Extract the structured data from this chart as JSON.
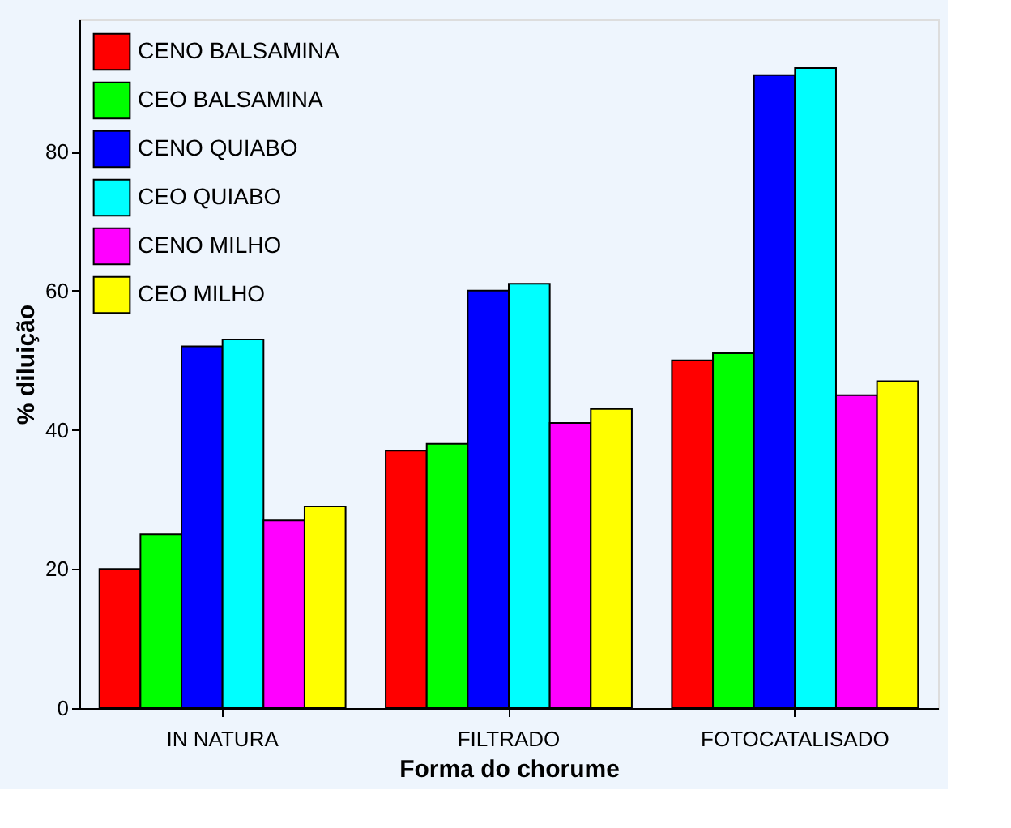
{
  "chart_data": {
    "type": "bar",
    "xlabel": "Forma do chorume",
    "ylabel": "% diluição",
    "categories": [
      "IN NATURA",
      "FILTRADO",
      "FOTOCATALISADO"
    ],
    "series": [
      {
        "name": "CENO BALSAMINA",
        "color": "#ff0000",
        "values": [
          20,
          37,
          50
        ]
      },
      {
        "name": "CEO BALSAMINA",
        "color": "#00ff00",
        "values": [
          25,
          38,
          51
        ]
      },
      {
        "name": "CENO QUIABO",
        "color": "#0000ff",
        "values": [
          52,
          60,
          91
        ]
      },
      {
        "name": "CEO QUIABO",
        "color": "#00ffff",
        "values": [
          53,
          61,
          92
        ]
      },
      {
        "name": "CENO MILHO",
        "color": "#ff00ff",
        "values": [
          27,
          41,
          45
        ]
      },
      {
        "name": "CEO MILHO",
        "color": "#ffff00",
        "values": [
          29,
          43,
          47
        ]
      }
    ],
    "ylim": [
      0,
      99
    ],
    "yticks": [
      0,
      20,
      40,
      60,
      80
    ],
    "grid": false,
    "legend": "top left"
  }
}
